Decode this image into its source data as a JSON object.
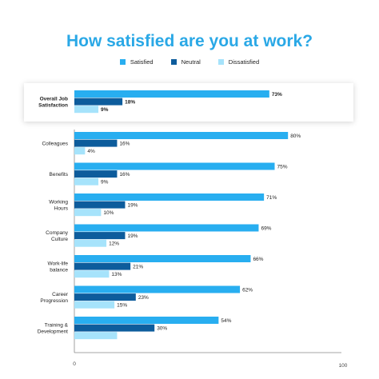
{
  "chart_data": {
    "type": "bar",
    "orientation": "horizontal",
    "title": "How satisfied are you at work?",
    "legend_position": "top",
    "series": [
      {
        "name": "Satisfied",
        "color": "#28aef0"
      },
      {
        "name": "Neutral",
        "color": "#0d5c9c"
      },
      {
        "name": "Dissatisfied",
        "color": "#a6e3fb"
      }
    ],
    "highlight": {
      "category": "Overall Job Satisfaction",
      "label_lines": [
        "Overall Job",
        "Satisfaction"
      ],
      "values": [
        73,
        18,
        9
      ],
      "labels": [
        "73%",
        "18%",
        "9%"
      ]
    },
    "categories": [
      {
        "label_lines": [
          "Colleagues"
        ],
        "values": [
          80,
          16,
          4
        ],
        "labels": [
          "80%",
          "16%",
          "4%"
        ]
      },
      {
        "label_lines": [
          "Benefits"
        ],
        "values": [
          75,
          16,
          9
        ],
        "labels": [
          "75%",
          "16%",
          "9%"
        ]
      },
      {
        "label_lines": [
          "Working",
          "Hours"
        ],
        "values": [
          71,
          19,
          10
        ],
        "labels": [
          "71%",
          "19%",
          "10%"
        ]
      },
      {
        "label_lines": [
          "Company",
          "Culture"
        ],
        "values": [
          69,
          19,
          12
        ],
        "labels": [
          "69%",
          "19%",
          "12%"
        ]
      },
      {
        "label_lines": [
          "Work-life",
          "balance"
        ],
        "values": [
          66,
          21,
          13
        ],
        "labels": [
          "66%",
          "21%",
          "13%"
        ]
      },
      {
        "label_lines": [
          "Career",
          "Progression"
        ],
        "values": [
          62,
          23,
          15
        ],
        "labels": [
          "62%",
          "23%",
          "15%"
        ]
      },
      {
        "label_lines": [
          "Training &",
          "Development"
        ],
        "values": [
          54,
          30,
          16
        ],
        "labels": [
          "54%",
          "30%",
          ""
        ]
      }
    ],
    "xlim": [
      0,
      100
    ],
    "x_ticks": [
      "0",
      "100"
    ],
    "grid": false
  }
}
